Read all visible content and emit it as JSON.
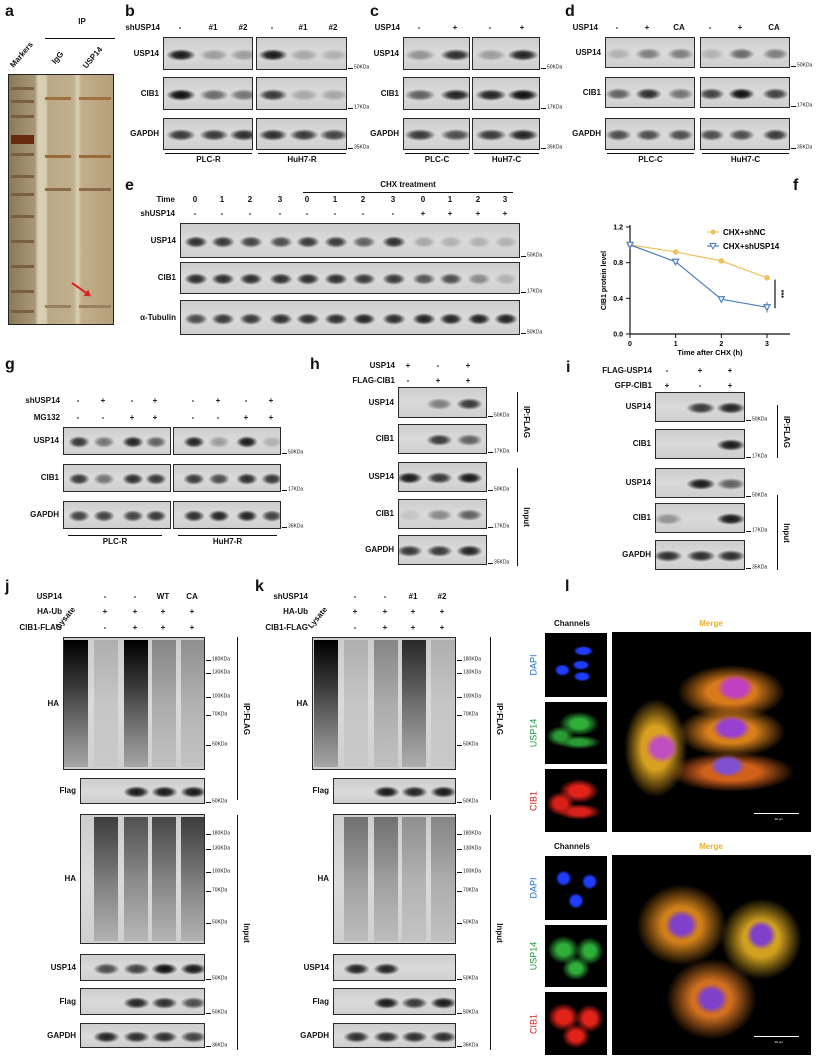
{
  "panels": {
    "a": {
      "letter": "a",
      "ip_label": "IP",
      "lane_labels": [
        "Markers",
        "IgG",
        "USP14"
      ],
      "arrow_color": "#e02020"
    },
    "b": {
      "letter": "b",
      "conditions": [
        {
          "label": "shUSP14",
          "values": [
            "-",
            "#1",
            "#2",
            "-",
            "#1",
            "#2"
          ]
        }
      ],
      "rows": [
        {
          "label": "USP14",
          "marker": "50KDa",
          "bands": [
            0.95,
            0.3,
            0.3,
            0.95,
            0.25,
            0.2
          ]
        },
        {
          "label": "CIB1",
          "marker": "17KDa",
          "bands": [
            1,
            0.55,
            0.5,
            0.8,
            0.25,
            0.25
          ]
        },
        {
          "label": "GAPDH",
          "marker": "35KDa",
          "bands": [
            0.8,
            0.8,
            0.85,
            0.85,
            0.8,
            0.75
          ]
        }
      ],
      "groups": [
        "PLC-R",
        "HuH7-R"
      ]
    },
    "c": {
      "letter": "c",
      "conditions": [
        {
          "label": "USP14",
          "values": [
            "-",
            "+",
            "-",
            "+"
          ]
        }
      ],
      "rows": [
        {
          "label": "USP14",
          "marker": "50KDa",
          "bands": [
            0.35,
            0.85,
            0.3,
            0.9
          ]
        },
        {
          "label": "CIB1",
          "marker": "17KDa",
          "bands": [
            0.6,
            0.9,
            0.9,
            1
          ]
        },
        {
          "label": "GAPDH",
          "marker": "35KDa",
          "bands": [
            0.8,
            0.7,
            0.8,
            0.9
          ]
        }
      ],
      "groups": [
        "PLC-C",
        "HuH7-C"
      ]
    },
    "d": {
      "letter": "d",
      "conditions": [
        {
          "label": "USP14",
          "values": [
            "-",
            "+",
            "CA",
            "-",
            "+",
            "CA"
          ]
        }
      ],
      "rows": [
        {
          "label": "USP14",
          "marker": "50KDa",
          "bands": [
            0.2,
            0.45,
            0.45,
            0.2,
            0.55,
            0.45
          ]
        },
        {
          "label": "CIB1",
          "marker": "17KDa",
          "bands": [
            0.6,
            0.85,
            0.5,
            0.75,
            1,
            0.75
          ]
        },
        {
          "label": "GAPDH",
          "marker": "35KDa",
          "bands": [
            0.7,
            0.7,
            0.7,
            0.7,
            0.7,
            0.8
          ]
        }
      ],
      "groups": [
        "PLC-C",
        "HuH7-C"
      ]
    },
    "e": {
      "letter": "e",
      "treatment_label": "CHX treatment",
      "conditions": [
        {
          "label": "Time",
          "values": [
            "0",
            "1",
            "2",
            "3",
            "0",
            "1",
            "2",
            "3",
            "0",
            "1",
            "2",
            "3"
          ]
        },
        {
          "label": "shUSP14",
          "values": [
            "-",
            "-",
            "-",
            "-",
            "-",
            "-",
            "-",
            "-",
            "+",
            "+",
            "+",
            "+"
          ]
        }
      ],
      "rows": [
        {
          "label": "USP14",
          "marker": "50KDa",
          "bands": [
            0.85,
            0.8,
            0.75,
            0.7,
            0.8,
            0.8,
            0.6,
            0.85,
            0.25,
            0.2,
            0.2,
            0.2
          ]
        },
        {
          "label": "CIB1",
          "marker": "17KDa",
          "bands": [
            0.85,
            0.85,
            0.85,
            0.85,
            0.85,
            0.85,
            0.8,
            0.8,
            0.65,
            0.7,
            0.4,
            0.2
          ]
        },
        {
          "label": "α-Tubulin",
          "marker": "50KDa",
          "bands": [
            0.7,
            0.8,
            0.8,
            0.85,
            0.85,
            0.85,
            0.9,
            0.85,
            0.9,
            0.9,
            0.9,
            0.9
          ]
        }
      ]
    },
    "f": {
      "letter": "f"
    },
    "g": {
      "letter": "g",
      "conditions": [
        {
          "label": "shUSP14",
          "values": [
            "-",
            "+",
            "-",
            "+",
            "-",
            "+",
            "-",
            "+"
          ]
        },
        {
          "label": "MG132",
          "values": [
            "-",
            "-",
            "+",
            "+",
            "-",
            "-",
            "+",
            "+"
          ]
        }
      ],
      "rows": [
        {
          "label": "USP14",
          "marker": "50KDa",
          "bands": [
            0.8,
            0.5,
            0.9,
            0.6,
            0.9,
            0.3,
            0.95,
            0.2
          ]
        },
        {
          "label": "CIB1",
          "marker": "17KDa",
          "bands": [
            0.8,
            0.5,
            0.85,
            0.8,
            0.8,
            0.7,
            0.85,
            0.8
          ]
        },
        {
          "label": "GAPDH",
          "marker": "35KDa",
          "bands": [
            0.75,
            0.75,
            0.75,
            0.8,
            0.85,
            0.9,
            0.9,
            0.75
          ]
        }
      ],
      "groups": [
        "PLC-R",
        "HuH7-R"
      ]
    },
    "h": {
      "letter": "h",
      "conditions": [
        {
          "label": "USP14",
          "values": [
            "+",
            "-",
            "+"
          ]
        },
        {
          "label": "FLAG-CIB1",
          "values": [
            "-",
            "+",
            "+"
          ]
        }
      ],
      "rows": [
        {
          "label": "USP14",
          "marker": "50KDa",
          "bands": [
            0,
            0.45,
            0.8
          ]
        },
        {
          "label": "CIB1",
          "marker": "17KDa",
          "bands": [
            0,
            0.8,
            0.6
          ]
        },
        {
          "label": "USP14",
          "marker": "50KDa",
          "bands": [
            0.95,
            0.8,
            0.95
          ]
        },
        {
          "label": "CIB1",
          "marker": "17KDa",
          "bands": [
            0.1,
            0.4,
            0.6
          ]
        },
        {
          "label": "GAPDH",
          "marker": "35KDa",
          "bands": [
            0.8,
            0.8,
            0.9
          ]
        }
      ],
      "side": [
        "IP:FLAG",
        "Input"
      ]
    },
    "i": {
      "letter": "i",
      "conditions": [
        {
          "label": "FLAG-USP14",
          "values": [
            "-",
            "+",
            "+"
          ]
        },
        {
          "label": "GFP-CIB1",
          "values": [
            "+",
            "-",
            "+"
          ]
        }
      ],
      "rows": [
        {
          "label": "USP14",
          "marker": "50KDa",
          "bands": [
            0,
            0.8,
            0.9
          ]
        },
        {
          "label": "CIB1",
          "marker": "17KDa",
          "bands": [
            0,
            0,
            0.95
          ]
        },
        {
          "label": "USP14",
          "marker": "50KDa",
          "bands": [
            0,
            0.95,
            0.6
          ]
        },
        {
          "label": "CIB1",
          "marker": "17KDa",
          "bands": [
            0.35,
            0,
            0.95
          ]
        },
        {
          "label": "GAPDH",
          "marker": "35KDa",
          "bands": [
            0.85,
            0.85,
            0.85
          ]
        }
      ],
      "side": [
        "IP:FLAG",
        "Input"
      ]
    },
    "j": {
      "letter": "j",
      "lysate_label": "Lysate",
      "conditions": [
        {
          "label": "USP14",
          "values": [
            "",
            "-",
            "-",
            "WT",
            "CA"
          ]
        },
        {
          "label": "HA-Ub",
          "values": [
            "",
            "+",
            "+",
            "+",
            "+"
          ]
        },
        {
          "label": "CIB1-FLAG",
          "values": [
            "",
            "-",
            "+",
            "+",
            "+"
          ]
        }
      ],
      "rows": [
        {
          "label": "HA",
          "smear": true,
          "markers": [
            "180KDa",
            "130KDa",
            "100KDa",
            "70KDa",
            "50KDa"
          ],
          "bands": [
            1,
            0.15,
            1,
            0.35,
            0.3
          ]
        },
        {
          "label": "Flag",
          "marker": "50KDa",
          "bands": [
            0,
            0.95,
            0.95,
            0.95
          ]
        },
        {
          "label": "HA",
          "smear": true,
          "markers": [
            "180KDa",
            "130KDa",
            "100KDa",
            "70KDa",
            "50KDa"
          ],
          "bands": [
            0.7,
            0.6,
            0.65,
            0.7
          ]
        },
        {
          "label": "USP14",
          "marker": "50KDa",
          "bands": [
            0.7,
            0.75,
            1,
            0.95
          ]
        },
        {
          "label": "Flag",
          "marker": "50KDa",
          "bands": [
            0,
            0.9,
            0.85,
            0.7
          ]
        },
        {
          "label": "GAPDH",
          "marker": "36KDa",
          "bands": [
            0.9,
            0.85,
            0.85,
            0.75
          ]
        }
      ],
      "side": [
        "IP:FLAG",
        "Input"
      ]
    },
    "k": {
      "letter": "k",
      "lysate_label": "Lysate",
      "conditions": [
        {
          "label": "shUSP14",
          "values": [
            "",
            "-",
            "-",
            "#1",
            "#2"
          ]
        },
        {
          "label": "HA-Ub",
          "values": [
            "",
            "+",
            "+",
            "+",
            "+"
          ]
        },
        {
          "label": "CIB1-FLAG",
          "values": [
            "",
            "-",
            "+",
            "+",
            "+"
          ]
        }
      ],
      "rows": [
        {
          "label": "HA",
          "smear": true,
          "markers": [
            "180KDa",
            "130KDa",
            "100KDa",
            "70KDa",
            "50KDa"
          ],
          "bands": [
            1,
            0.15,
            0.35,
            0.8,
            0.15
          ]
        },
        {
          "label": "Flag",
          "marker": "50KDa",
          "bands": [
            0,
            0.95,
            0.9,
            0.95
          ]
        },
        {
          "label": "HA",
          "smear": true,
          "markers": [
            "180KDa",
            "130KDa",
            "100KDa",
            "70KDa",
            "50KDa"
          ],
          "bands": [
            0.45,
            0.45,
            0.3,
            0.35
          ]
        },
        {
          "label": "USP14",
          "marker": "50KDa",
          "bands": [
            0.9,
            0.9,
            0,
            0
          ]
        },
        {
          "label": "Flag",
          "marker": "50KDa",
          "bands": [
            0,
            0.95,
            0.8,
            0.95
          ]
        },
        {
          "label": "GAPDH",
          "marker": "36KDa",
          "bands": [
            0.85,
            0.85,
            0.85,
            0.85
          ]
        }
      ],
      "side": [
        "IP:FLAG",
        "Input"
      ]
    },
    "l": {
      "letter": "l",
      "channels_title": "Channels",
      "merge_title": "Merge",
      "channels": [
        {
          "label": "DAPI",
          "color": "#1f6fd0"
        },
        {
          "label": "USP14",
          "color": "#1a9a3a"
        },
        {
          "label": "CIB1",
          "color": "#d0201a"
        }
      ],
      "merge_color": "#f0b020",
      "scale_labels": [
        "20 μm",
        "20 μm"
      ]
    }
  },
  "chart_data": {
    "type": "line",
    "xlabel": "Time after CHX (h)",
    "ylabel": "CIB1 protein level",
    "x": [
      0,
      1,
      2,
      3
    ],
    "xticks": [
      "0",
      "1",
      "2",
      "3"
    ],
    "yticks": [
      "0.0",
      "0.4",
      "0.8",
      "1.2"
    ],
    "ylim": [
      0,
      1.2
    ],
    "legend_placement": "top-right",
    "series": [
      {
        "name": "CHX+shNC",
        "values": [
          1.0,
          0.92,
          0.82,
          0.63
        ],
        "errors": [
          0,
          0.01,
          0.01,
          0.02
        ],
        "color": "#f2c15c",
        "marker": "circle"
      },
      {
        "name": "CHX+shUSP14",
        "values": [
          1.0,
          0.81,
          0.39,
          0.3
        ],
        "errors": [
          0,
          0.02,
          0.02,
          0.06
        ],
        "color": "#4a7fc1",
        "marker": "triangle-down"
      }
    ],
    "annotation": "***"
  }
}
